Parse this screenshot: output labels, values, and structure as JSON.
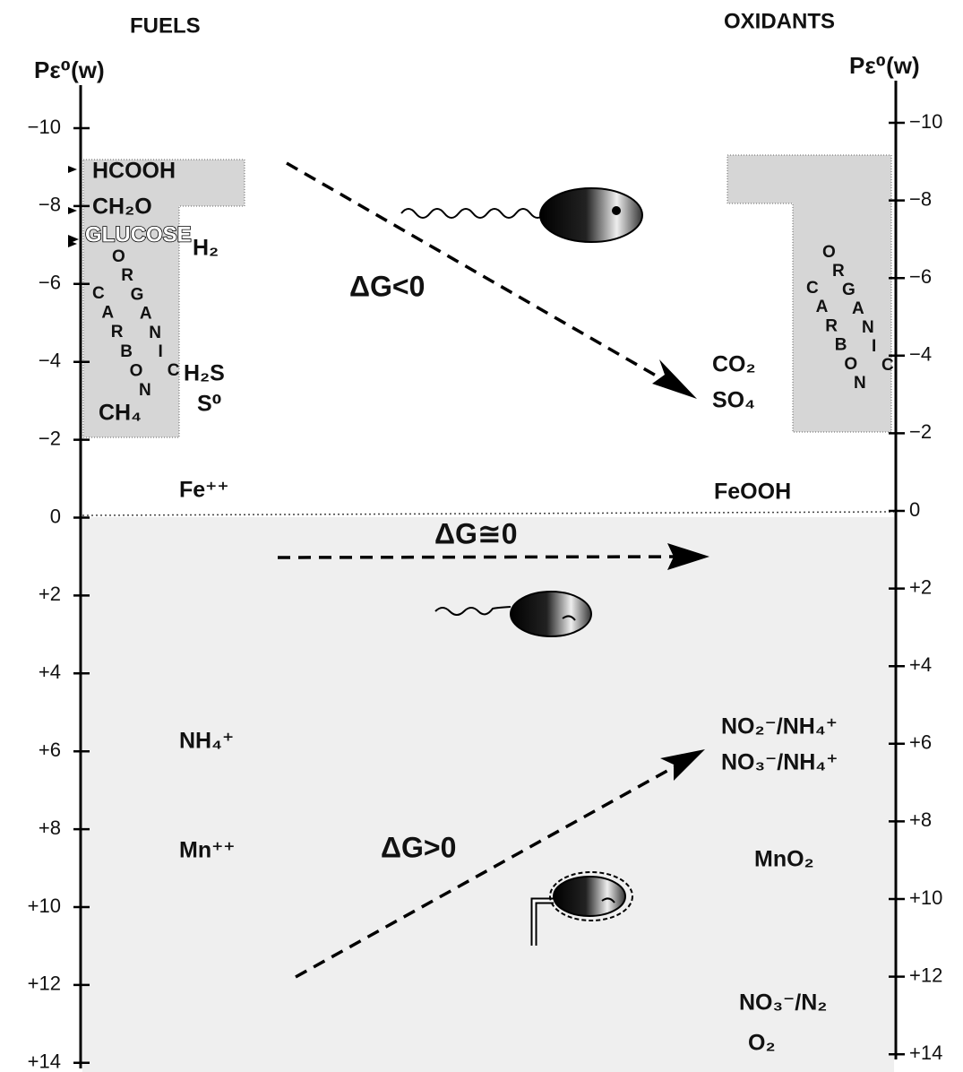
{
  "header": {
    "fuels": "FUELS",
    "oxidants": "OXIDANTS"
  },
  "left_axis": {
    "label": "Pε⁰(w)",
    "ticks": [
      "−10",
      "−8",
      "−6",
      "−4",
      "−2",
      "0",
      "+2",
      "+4",
      "+6",
      "+8",
      "+10",
      "+12",
      "+14"
    ]
  },
  "right_axis": {
    "label": "Pε⁰(w)",
    "ticks": [
      "−10",
      "−8",
      "−6",
      "−4",
      "−2",
      "0",
      "+2",
      "+4",
      "+6",
      "+8",
      "+10",
      "+12",
      "+14"
    ]
  },
  "fuels": [
    "HCOOH",
    "CH₂O",
    "GLUCOSE",
    "H₂",
    "H₂S",
    "S⁰",
    "CH₄",
    "Fe⁺⁺",
    "NH₄⁺",
    "Mn⁺⁺"
  ],
  "left_region": {
    "words": [
      "ORGANIC",
      "CARBON"
    ]
  },
  "oxidants": [
    "CO₂",
    "SO₄",
    "FeOOH",
    "NO₂⁻/NH₄⁺",
    "NO₃⁻/NH₄⁺",
    "MnO₂",
    "NO₃⁻/N₂",
    "O₂"
  ],
  "right_region": {
    "words": [
      "ORGANIC",
      "CARBON"
    ]
  },
  "reactions": [
    "ΔG<0",
    "ΔG≅0",
    "ΔG>0"
  ]
}
